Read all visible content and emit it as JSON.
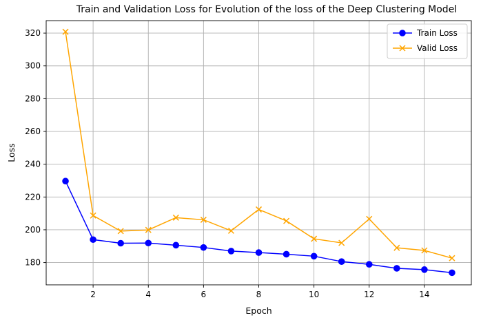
{
  "chart_data": {
    "type": "line",
    "title": "Train and Validation Loss for Evolution of the loss of the Deep Clustering Model",
    "xlabel": "Epoch",
    "ylabel": "Loss",
    "x": [
      1,
      2,
      3,
      4,
      5,
      6,
      7,
      8,
      9,
      10,
      11,
      12,
      13,
      14,
      15
    ],
    "xticks": [
      2,
      4,
      6,
      8,
      10,
      12,
      14
    ],
    "yticks": [
      180,
      200,
      220,
      240,
      260,
      280,
      300,
      320
    ],
    "xlim": [
      0.3,
      15.7
    ],
    "ylim": [
      166.4,
      327.6
    ],
    "grid": true,
    "legend_position": "top-right",
    "series": [
      {
        "name": "Train Loss",
        "color": "#0000ff",
        "marker": "circle",
        "values": [
          229.7,
          194.0,
          191.8,
          191.9,
          190.6,
          189.2,
          187.0,
          186.1,
          185.1,
          183.9,
          180.6,
          178.9,
          176.5,
          175.7,
          173.8
        ]
      },
      {
        "name": "Valid Loss",
        "color": "#ffa500",
        "marker": "x",
        "values": [
          320.8,
          208.7,
          199.2,
          199.9,
          207.4,
          206.1,
          199.4,
          212.4,
          205.4,
          194.5,
          192.0,
          206.6,
          189.0,
          187.4,
          182.7
        ]
      }
    ]
  }
}
